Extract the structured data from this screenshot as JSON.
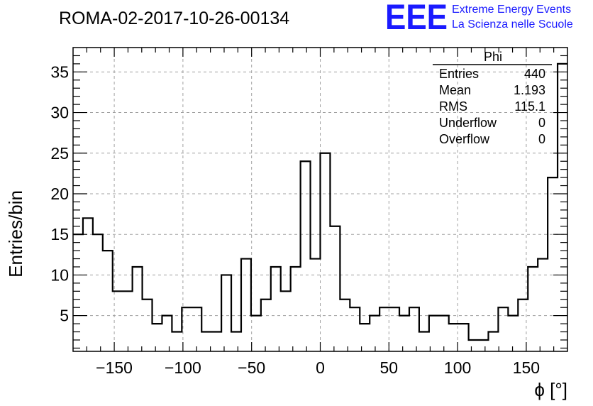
{
  "chart_data": {
    "type": "histogram",
    "title": "ROMA-02-2017-10-26-00134",
    "xlabel": "ϕ [°]",
    "ylabel": "Entries/bin",
    "xlim": [
      -180,
      180
    ],
    "ylim": [
      0.6,
      38
    ],
    "bin_width": 7.2,
    "bin_edges_start": -180,
    "values": [
      15,
      17,
      15,
      13,
      8,
      8,
      11,
      7,
      4,
      5,
      3,
      6,
      6,
      3,
      3,
      10,
      3,
      12,
      5,
      7,
      11,
      8,
      11,
      24,
      12,
      25,
      16,
      7,
      6,
      4,
      5,
      6,
      6,
      5,
      6,
      3,
      5,
      5,
      4,
      4,
      2,
      2,
      3,
      6,
      5,
      7,
      11,
      12,
      22,
      36
    ],
    "x_ticks": [
      -150,
      -100,
      -50,
      0,
      50,
      100,
      150
    ],
    "x_tick_labels": [
      "−150",
      "−100",
      "−50",
      "0",
      "50",
      "100",
      "150"
    ],
    "y_ticks": [
      5,
      10,
      15,
      20,
      25,
      30,
      35
    ],
    "y_tick_labels": [
      "5",
      "10",
      "15",
      "20",
      "25",
      "30",
      "35"
    ],
    "grid": true,
    "line_color": "#000000"
  },
  "logo": {
    "mark": "EEE",
    "line1": "Extreme Energy Events",
    "line2": "La Scienza nelle Scuole",
    "color": "#1a1aff"
  },
  "stats": {
    "name": "Phi",
    "rows": [
      {
        "label": "Entries",
        "value": "440"
      },
      {
        "label": "Mean",
        "value": "1.193"
      },
      {
        "label": "RMS",
        "value": "115.1"
      },
      {
        "label": "Underflow",
        "value": "0"
      },
      {
        "label": "Overflow",
        "value": "0"
      }
    ]
  }
}
